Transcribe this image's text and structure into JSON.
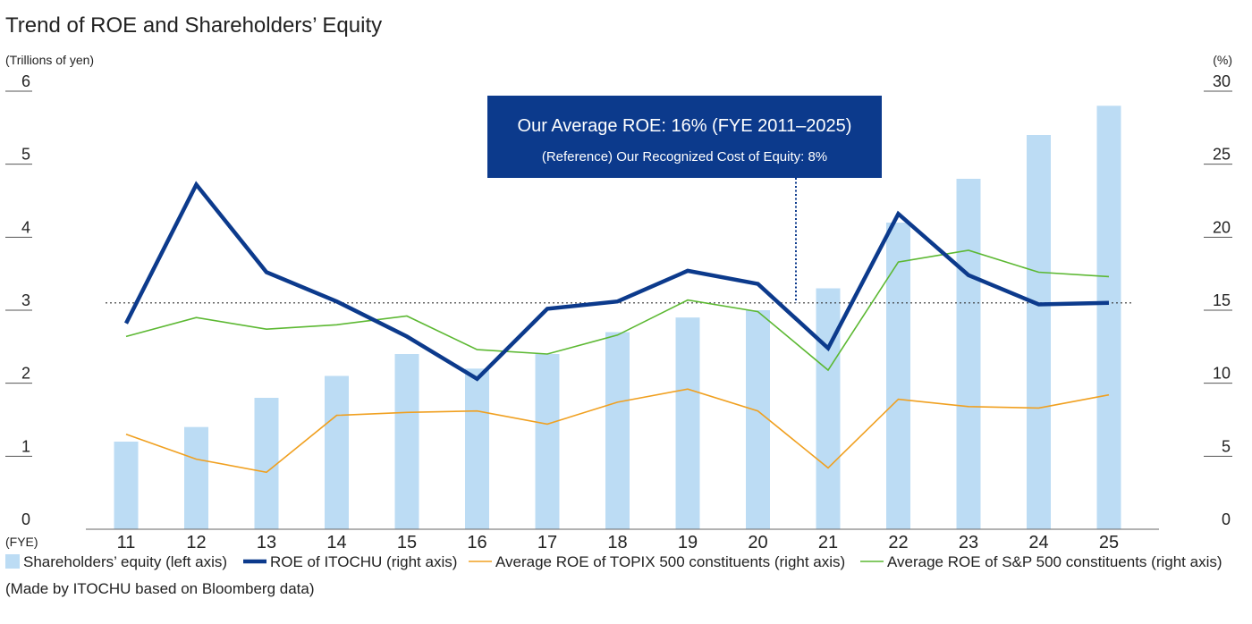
{
  "chart_data": {
    "type": "bar",
    "title": "Trend of ROE and Shareholders’ Equity",
    "left_axis_unit": "(Trillions of yen)",
    "right_axis_unit": "(%)",
    "x_axis_unit": "(FYE)",
    "categories": [
      "11",
      "12",
      "13",
      "14",
      "15",
      "16",
      "17",
      "18",
      "19",
      "20",
      "21",
      "22",
      "23",
      "24",
      "25"
    ],
    "left_axis": {
      "range": [
        0,
        6
      ],
      "ticks": [
        "0",
        "1",
        "2",
        "3",
        "4",
        "5",
        "6"
      ]
    },
    "right_axis": {
      "range": [
        0,
        30
      ],
      "ticks": [
        "0",
        "5",
        "10",
        "15",
        "20",
        "25",
        "30"
      ]
    },
    "series": [
      {
        "name": "Shareholders’ equity (left axis)",
        "type": "bar",
        "axis": "left",
        "color": "#bcdcf4",
        "values": [
          1.2,
          1.4,
          1.8,
          2.1,
          2.4,
          2.2,
          2.4,
          2.7,
          2.9,
          3.0,
          3.3,
          4.2,
          4.8,
          5.4,
          5.8
        ]
      },
      {
        "name": "ROE of ITOCHU (right axis)",
        "type": "line",
        "axis": "right",
        "color": "#0c3a8c",
        "values": [
          14.1,
          23.6,
          17.6,
          15.6,
          13.2,
          10.3,
          15.1,
          15.6,
          17.7,
          16.8,
          12.4,
          21.6,
          17.4,
          15.4,
          15.5
        ]
      },
      {
        "name": "Average ROE of TOPIX 500 constituents (right axis)",
        "type": "line",
        "axis": "right",
        "color": "#f0a020",
        "values": [
          6.5,
          4.8,
          3.9,
          7.8,
          8.0,
          8.1,
          7.2,
          8.7,
          9.6,
          8.1,
          4.2,
          8.9,
          8.4,
          8.3,
          9.2
        ]
      },
      {
        "name": "Average ROE of S&P 500 constituents (right axis)",
        "type": "line",
        "axis": "right",
        "color": "#5cb832",
        "values": [
          13.2,
          14.5,
          13.7,
          14.0,
          14.6,
          12.3,
          12.0,
          13.3,
          15.7,
          14.9,
          10.9,
          18.3,
          19.1,
          17.6,
          17.3
        ]
      }
    ],
    "reference_line": {
      "value": 15.5,
      "axis": "right"
    },
    "callout": {
      "main": "Our Average ROE: 16% (FYE 2011–2025)",
      "sub": "(Reference) Our Recognized Cost of Equity: 8%",
      "fill": "#0c3a8c"
    },
    "legend_position": "bottom",
    "grid": false,
    "note": "(Made by ITOCHU based on Bloomberg data)"
  }
}
